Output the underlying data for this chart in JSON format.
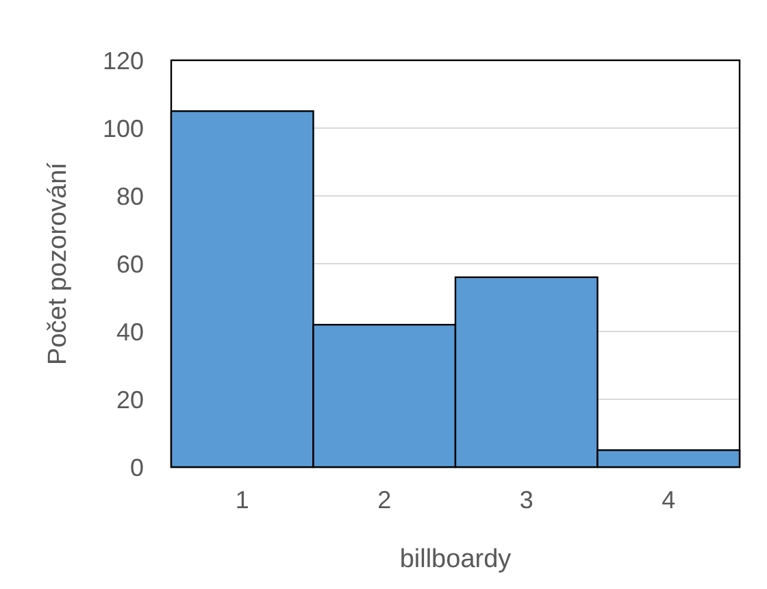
{
  "chart_data": {
    "type": "bar",
    "xlabel": "billboardy",
    "ylabel": "Počet pozorování",
    "categories": [
      "1",
      "2",
      "3",
      "4"
    ],
    "values": [
      105,
      42,
      56,
      5
    ],
    "color": "#5b9bd5",
    "ylim": [
      0,
      120
    ],
    "yticks": [
      0,
      20,
      40,
      60,
      80,
      100,
      120
    ],
    "grid": "y"
  }
}
